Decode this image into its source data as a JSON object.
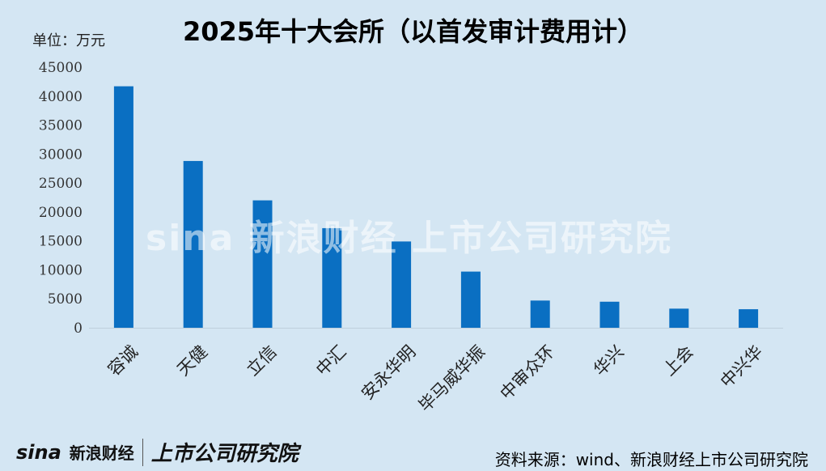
{
  "title": "2025年十大会所（以首发审计费用计）",
  "unit_label": "单位：万元",
  "source": "资料来源：wind、新浪财经上市公司研究院",
  "watermark": {
    "brand": "sina",
    "channel": "新浪财经",
    "institute": "上市公司研究院"
  },
  "footer_logo": {
    "brand": "sina",
    "channel": "新浪财经",
    "institute": "上市公司研究院"
  },
  "colors": {
    "bar": "#0a6fc2",
    "background": "#d4e6f3",
    "axis": "#bfcfdc"
  },
  "chart_data": {
    "type": "bar",
    "title": "2025年十大会所（以首发审计费用计）",
    "xlabel": "",
    "ylabel": "单位：万元",
    "categories": [
      "容诚",
      "天健",
      "立信",
      "中汇",
      "安永华明",
      "毕马威华振",
      "中审众环",
      "华兴",
      "上会",
      "中兴华"
    ],
    "values": [
      41700,
      28800,
      22000,
      17200,
      14900,
      9700,
      4700,
      4500,
      3300,
      3200
    ],
    "ylim": [
      0,
      45000
    ],
    "yticks": [
      0,
      5000,
      10000,
      15000,
      20000,
      25000,
      30000,
      35000,
      40000,
      45000
    ],
    "grid": false,
    "legend": "none"
  }
}
